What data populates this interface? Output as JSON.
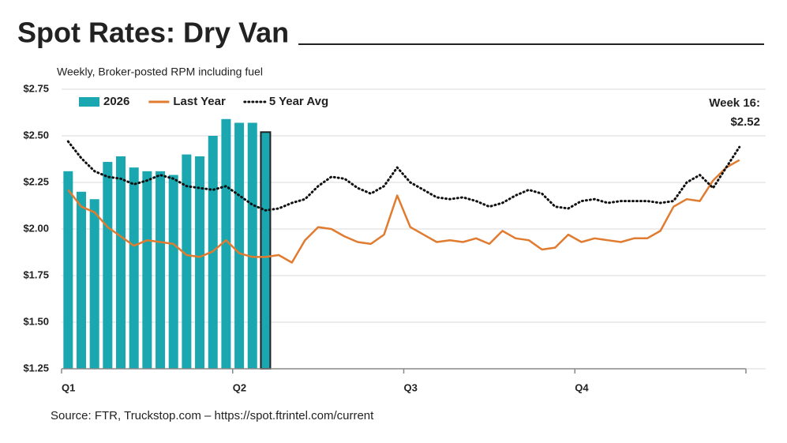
{
  "chart_data": {
    "type": "combo",
    "title": "Spot Rates: Dry Van",
    "subtitle": "Weekly, Broker-posted RPM including fuel",
    "source": "Source: FTR, Truckstop.com – https://spot.ftrintel.com/current",
    "annotation": [
      "Week 16:",
      "$2.52"
    ],
    "x": [
      1,
      2,
      3,
      4,
      5,
      6,
      7,
      8,
      9,
      10,
      11,
      12,
      13,
      14,
      15,
      16,
      17,
      18,
      19,
      20,
      21,
      22,
      23,
      24,
      25,
      26,
      27,
      28,
      29,
      30,
      31,
      32,
      33,
      34,
      35,
      36,
      37,
      38,
      39,
      40,
      41,
      42,
      43,
      44,
      45,
      46,
      47,
      48,
      49,
      50,
      51,
      52
    ],
    "xlim": [
      0.5,
      54
    ],
    "xticks": [
      {
        "value": 0.5,
        "label": "Q1"
      },
      {
        "value": 13.5,
        "label": "Q2"
      },
      {
        "value": 26.5,
        "label": "Q3"
      },
      {
        "value": 39.5,
        "label": "Q4"
      }
    ],
    "ylim": [
      1.25,
      2.75
    ],
    "yticks": [
      {
        "value": 1.25,
        "label": "$1.25"
      },
      {
        "value": 1.5,
        "label": "$1.50"
      },
      {
        "value": 1.75,
        "label": "$1.75"
      },
      {
        "value": 2.0,
        "label": "$2.00"
      },
      {
        "value": 2.25,
        "label": "$2.25"
      },
      {
        "value": 2.5,
        "label": "$2.50"
      },
      {
        "value": 2.75,
        "label": "$2.75"
      }
    ],
    "grid": true,
    "legend": "top-left",
    "series": [
      {
        "name": "2026",
        "kind": "bar",
        "color": "#1aa7b0",
        "highlight_last": true,
        "values": [
          2.31,
          2.2,
          2.16,
          2.36,
          2.39,
          2.33,
          2.31,
          2.31,
          2.29,
          2.4,
          2.39,
          2.5,
          2.59,
          2.57,
          2.57,
          2.52,
          null,
          null,
          null,
          null,
          null,
          null,
          null,
          null,
          null,
          null,
          null,
          null,
          null,
          null,
          null,
          null,
          null,
          null,
          null,
          null,
          null,
          null,
          null,
          null,
          null,
          null,
          null,
          null,
          null,
          null,
          null,
          null,
          null,
          null,
          null,
          null
        ]
      },
      {
        "name": "Last Year",
        "kind": "line",
        "color": "#e07b30",
        "values": [
          2.21,
          2.12,
          2.09,
          2.01,
          1.96,
          1.91,
          1.94,
          1.93,
          1.92,
          1.86,
          1.85,
          1.88,
          1.94,
          1.87,
          1.85,
          1.85,
          1.86,
          1.82,
          1.94,
          2.01,
          2.0,
          1.96,
          1.93,
          1.92,
          1.97,
          2.18,
          2.01,
          1.97,
          1.93,
          1.94,
          1.93,
          1.95,
          1.92,
          1.99,
          1.95,
          1.94,
          1.89,
          1.9,
          1.97,
          1.93,
          1.95,
          1.94,
          1.93,
          1.95,
          1.95,
          1.99,
          2.12,
          2.16,
          2.15,
          2.26,
          2.33,
          2.37
        ]
      },
      {
        "name": "5 Year Avg",
        "kind": "dotted",
        "color": "#111111",
        "values": [
          2.47,
          2.38,
          2.31,
          2.28,
          2.27,
          2.24,
          2.26,
          2.29,
          2.27,
          2.23,
          2.22,
          2.21,
          2.23,
          2.18,
          2.13,
          2.1,
          2.11,
          2.14,
          2.16,
          2.23,
          2.28,
          2.27,
          2.22,
          2.19,
          2.23,
          2.33,
          2.25,
          2.21,
          2.17,
          2.16,
          2.17,
          2.15,
          2.12,
          2.14,
          2.18,
          2.21,
          2.19,
          2.12,
          2.11,
          2.15,
          2.16,
          2.14,
          2.15,
          2.15,
          2.15,
          2.14,
          2.15,
          2.25,
          2.29,
          2.22,
          2.33,
          2.44
        ]
      }
    ]
  }
}
